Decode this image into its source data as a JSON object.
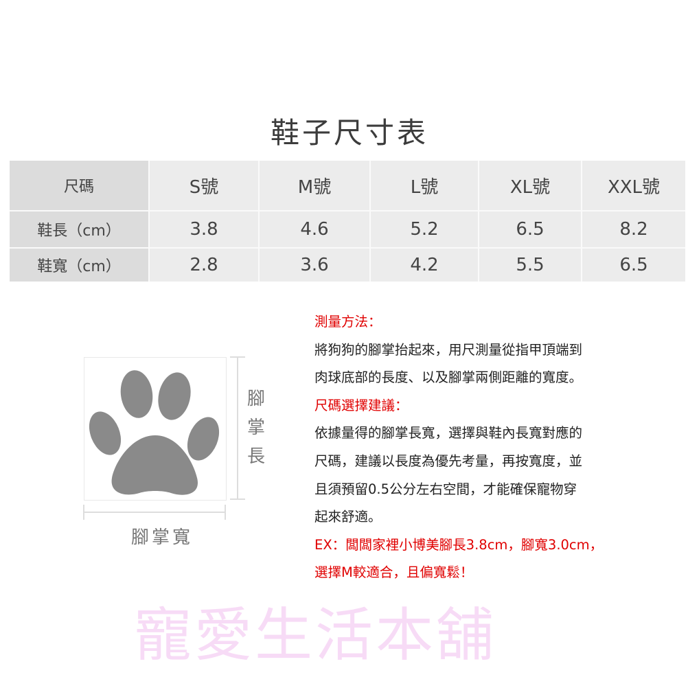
{
  "title": "鞋子尺寸表",
  "watermark": "寵愛生活本舖",
  "table": {
    "header": [
      "尺碼",
      "S號",
      "M號",
      "L號",
      "XL號",
      "XXL號"
    ],
    "rows": [
      [
        "鞋長（cm）",
        "3.8",
        "4.6",
        "5.2",
        "6.5",
        "8.2"
      ],
      [
        "鞋寬（cm）",
        "2.8",
        "3.6",
        "4.2",
        "5.5",
        "6.5"
      ]
    ]
  },
  "diagram": {
    "length_label": [
      "腳",
      "掌",
      "長"
    ],
    "width_label": "腳掌寬",
    "paw_color": "#8a8a8a"
  },
  "instructions": {
    "method_heading": "測量方法：",
    "method_lines": [
      "將狗狗的腳掌抬起來，用尺測量從指甲頂端到",
      "肉球底部的長度、以及腳掌兩側距離的寬度。"
    ],
    "advice_heading": "尺碼選擇建議：",
    "advice_lines": [
      "依據量得的腳掌長寬，選擇與鞋內長寬對應的",
      "尺碼，建議以長度為優先考量，再按寬度，並",
      "且須預留0.5公分左右空間，才能確保寵物穿",
      "起來舒適。"
    ],
    "example_lines": [
      "EX：闆闆家裡小博美腳長3.8cm，腳寬3.0cm，",
      "選擇M較適合，且偏寬鬆！"
    ],
    "accent_color": "#e00000"
  }
}
